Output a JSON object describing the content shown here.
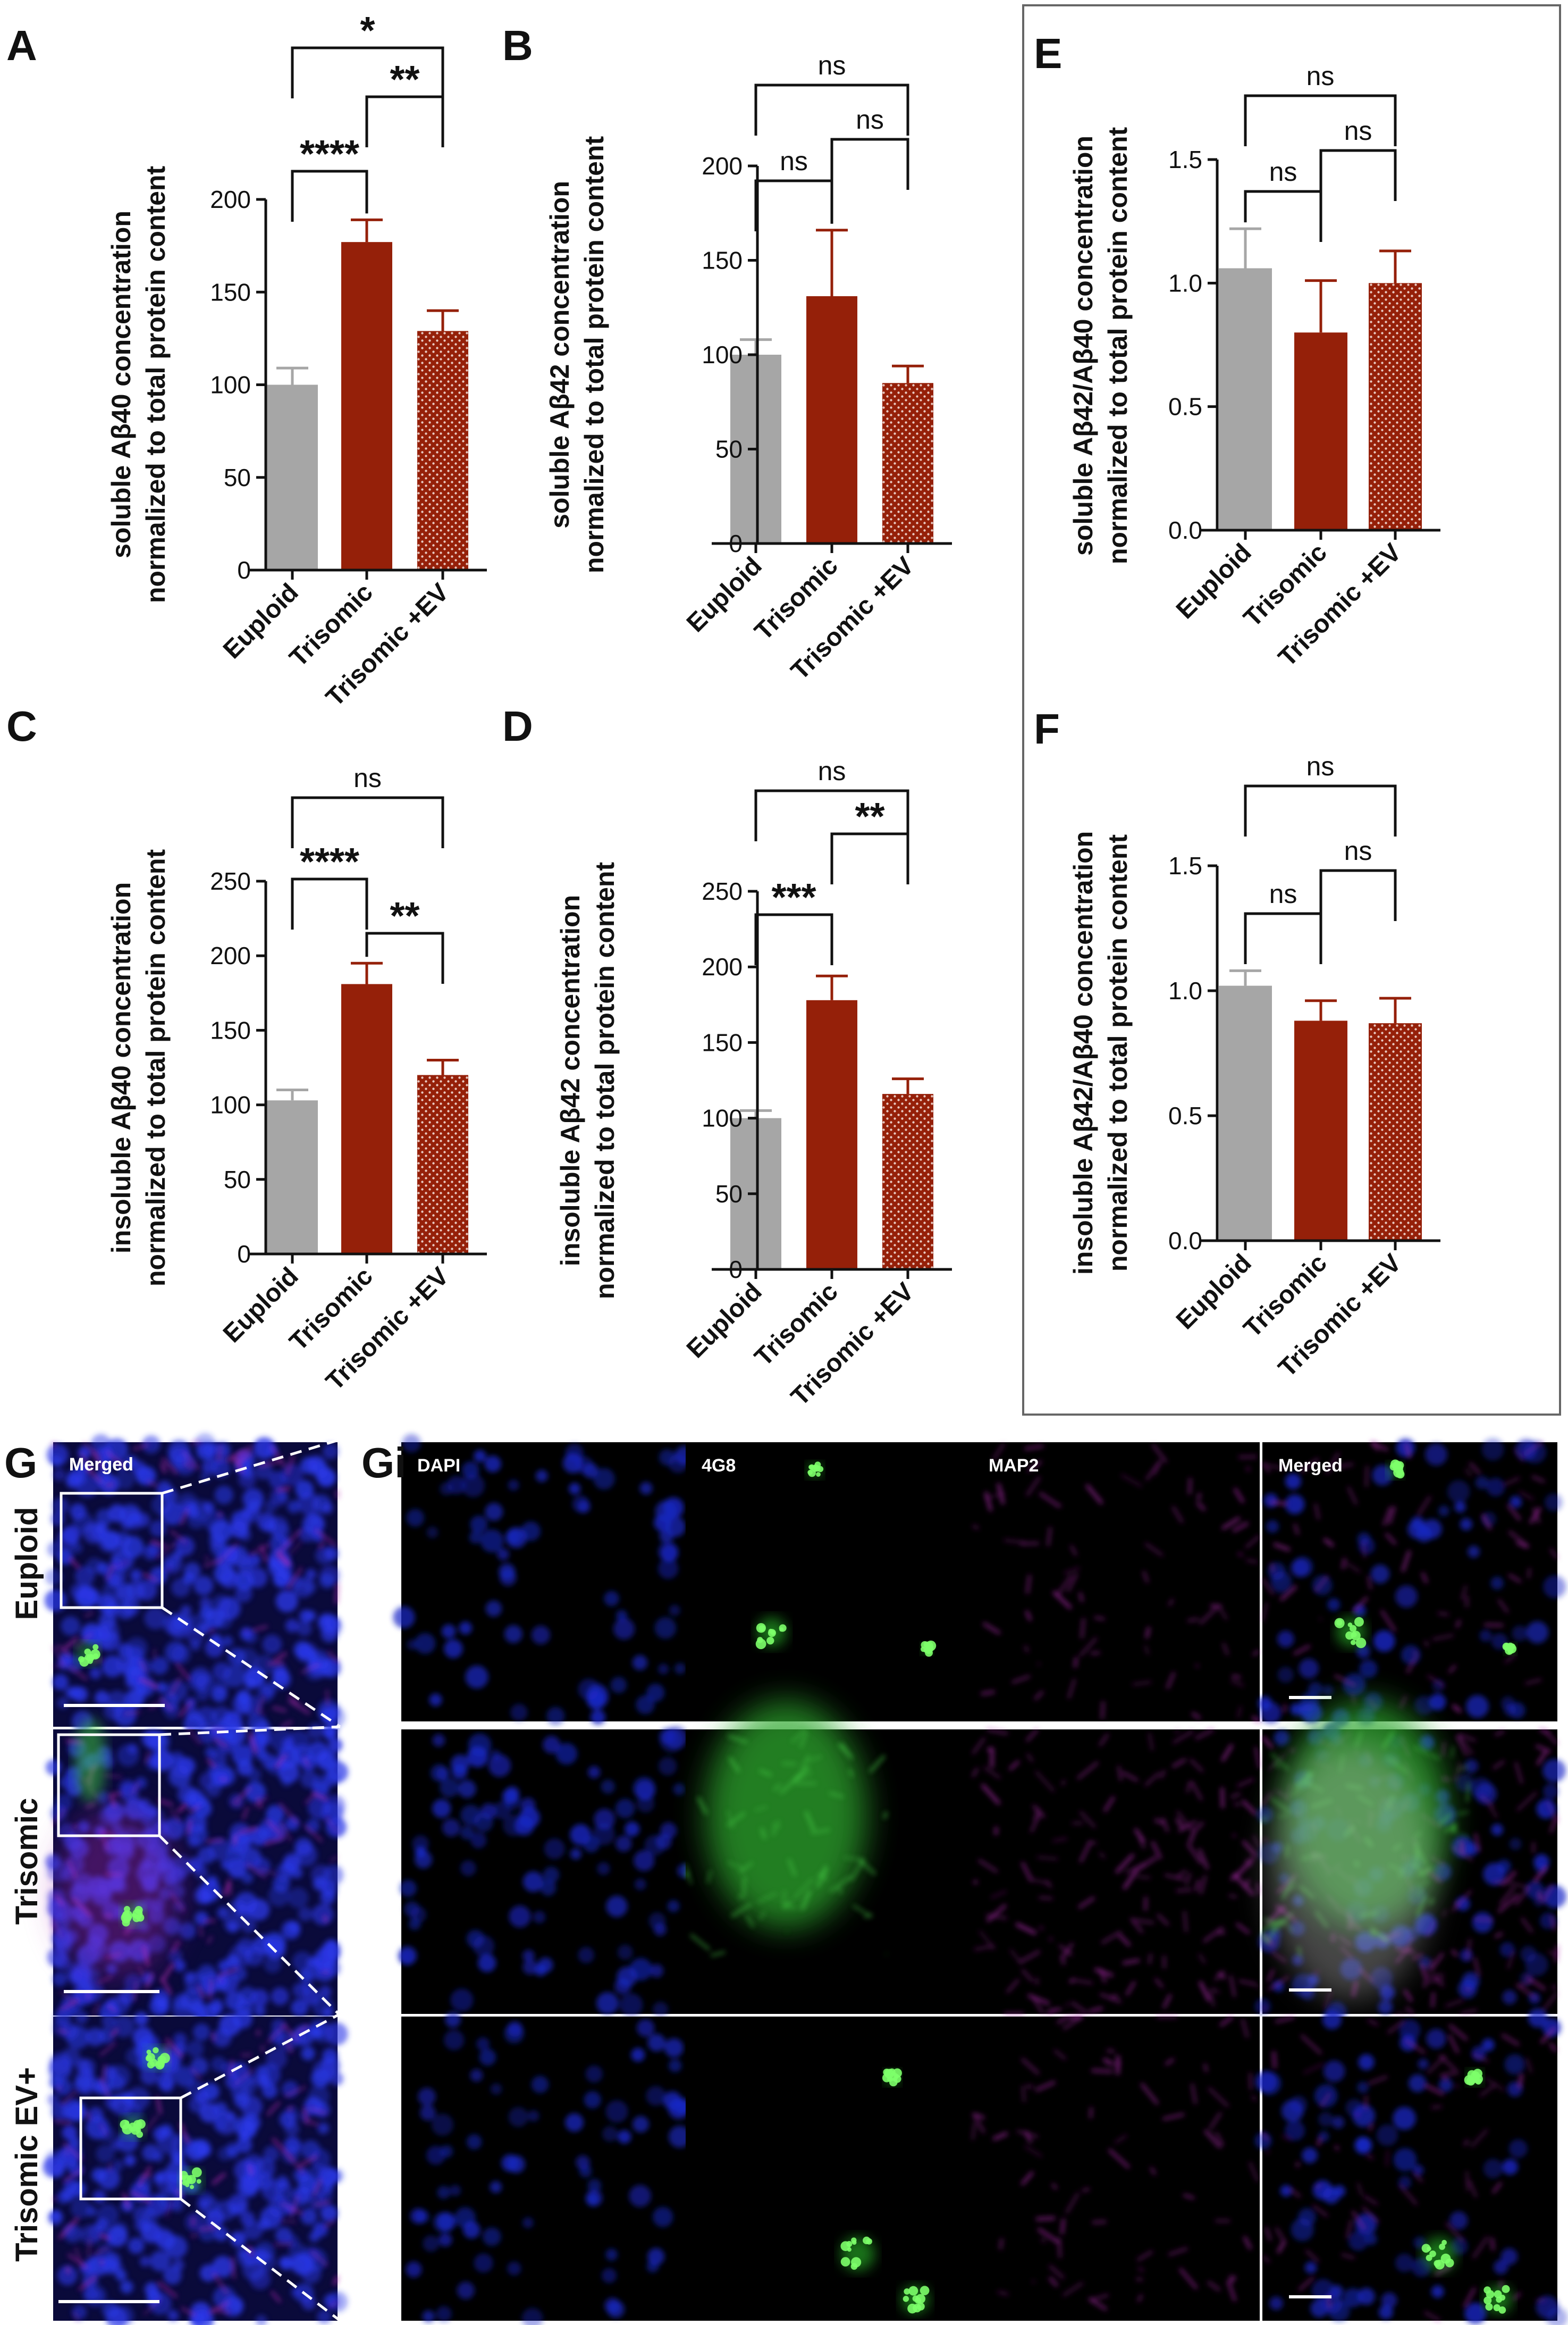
{
  "panel_letters": {
    "A": "A",
    "B": "B",
    "C": "C",
    "D": "D",
    "E": "E",
    "F": "F",
    "G": "G",
    "Gi": "Gi"
  },
  "colors": {
    "euploid": "#a6a6a6",
    "trisomic": "#952009",
    "trisomic_ev": "#952009",
    "dots": "#e8c8c0",
    "axis": "#111111",
    "box_border": "#666666"
  },
  "chart_data": [
    {
      "id": "A",
      "type": "bar",
      "categories": [
        "Euploid",
        "Trisomic",
        "Trisomic +EV"
      ],
      "values": [
        100,
        177,
        129
      ],
      "errors": [
        9,
        12,
        11
      ],
      "ylim": [
        0,
        200
      ],
      "yticks": [
        "0",
        "50",
        "100",
        "150",
        "200"
      ],
      "ylabel": [
        "soluble Aβ40 concentration",
        "normalized to total protein content"
      ],
      "comparisons": [
        {
          "from": 0,
          "to": 1,
          "label": "****"
        },
        {
          "from": 1,
          "to": 2,
          "label": "**"
        },
        {
          "from": 0,
          "to": 2,
          "label": "*"
        }
      ]
    },
    {
      "id": "B",
      "type": "bar",
      "categories": [
        "Euploid",
        "Trisomic",
        "Trisomic +EV"
      ],
      "values": [
        100,
        131,
        85
      ],
      "errors": [
        8,
        35,
        9
      ],
      "ylim": [
        0,
        200
      ],
      "yticks": [
        "0",
        "50",
        "100",
        "150",
        "200"
      ],
      "ylabel": [
        "soluble Aβ42 concentration",
        "normalized to total protein content"
      ],
      "comparisons": [
        {
          "from": 0,
          "to": 1,
          "label": "ns"
        },
        {
          "from": 1,
          "to": 2,
          "label": "ns"
        },
        {
          "from": 0,
          "to": 2,
          "label": "ns"
        }
      ]
    },
    {
      "id": "C",
      "type": "bar",
      "categories": [
        "Euploid",
        "Trisomic",
        "Trisomic +EV"
      ],
      "values": [
        103,
        181,
        120
      ],
      "errors": [
        7,
        14,
        10
      ],
      "ylim": [
        0,
        250
      ],
      "yticks": [
        "0",
        "50",
        "100",
        "150",
        "200",
        "250"
      ],
      "ylabel": [
        "insoluble Aβ40 concentration",
        "normalized to total protein content"
      ],
      "comparisons": [
        {
          "from": 0,
          "to": 1,
          "label": "****"
        },
        {
          "from": 1,
          "to": 2,
          "label": "**"
        },
        {
          "from": 0,
          "to": 2,
          "label": "ns"
        }
      ]
    },
    {
      "id": "D",
      "type": "bar",
      "categories": [
        "Euploid",
        "Trisomic",
        "Trisomic +EV"
      ],
      "values": [
        100,
        178,
        116
      ],
      "errors": [
        5,
        16,
        10
      ],
      "ylim": [
        0,
        250
      ],
      "yticks": [
        "0",
        "50",
        "100",
        "150",
        "200",
        "250"
      ],
      "ylabel": [
        "insoluble Aβ42 concentration",
        "normalized to total protein content"
      ],
      "comparisons": [
        {
          "from": 0,
          "to": 1,
          "label": "***"
        },
        {
          "from": 1,
          "to": 2,
          "label": "**"
        },
        {
          "from": 0,
          "to": 2,
          "label": "ns"
        }
      ]
    },
    {
      "id": "E",
      "type": "bar",
      "categories": [
        "Euploid",
        "Trisomic",
        "Trisomic +EV"
      ],
      "values": [
        1.06,
        0.8,
        1.0
      ],
      "errors": [
        0.16,
        0.21,
        0.13
      ],
      "ylim": [
        0,
        1.5
      ],
      "yticks": [
        "0.0",
        "0.5",
        "1.0",
        "1.5"
      ],
      "ylabel": [
        "soluble Aβ42/Aβ40 concentration",
        "normalized to total protein content"
      ],
      "comparisons": [
        {
          "from": 0,
          "to": 1,
          "label": "ns"
        },
        {
          "from": 1,
          "to": 2,
          "label": "ns"
        },
        {
          "from": 0,
          "to": 2,
          "label": "ns"
        }
      ]
    },
    {
      "id": "F",
      "type": "bar",
      "categories": [
        "Euploid",
        "Trisomic",
        "Trisomic +EV"
      ],
      "values": [
        1.02,
        0.88,
        0.87
      ],
      "errors": [
        0.06,
        0.08,
        0.1
      ],
      "ylim": [
        0,
        1.5
      ],
      "yticks": [
        "0.0",
        "0.5",
        "1.0",
        "1.5"
      ],
      "ylabel": [
        "insoluble Aβ42/Aβ40 concentration",
        "normalized to total protein content"
      ],
      "comparisons": [
        {
          "from": 0,
          "to": 1,
          "label": "ns"
        },
        {
          "from": 1,
          "to": 2,
          "label": "ns"
        },
        {
          "from": 0,
          "to": 2,
          "label": "ns"
        }
      ]
    }
  ],
  "micrographs": {
    "row_labels": [
      "Euploid",
      "Trisomic",
      "Trisomic EV+"
    ],
    "merged_label": "Merged",
    "channel_labels": [
      "DAPI",
      "4G8",
      "MAP2",
      "Merged"
    ]
  }
}
